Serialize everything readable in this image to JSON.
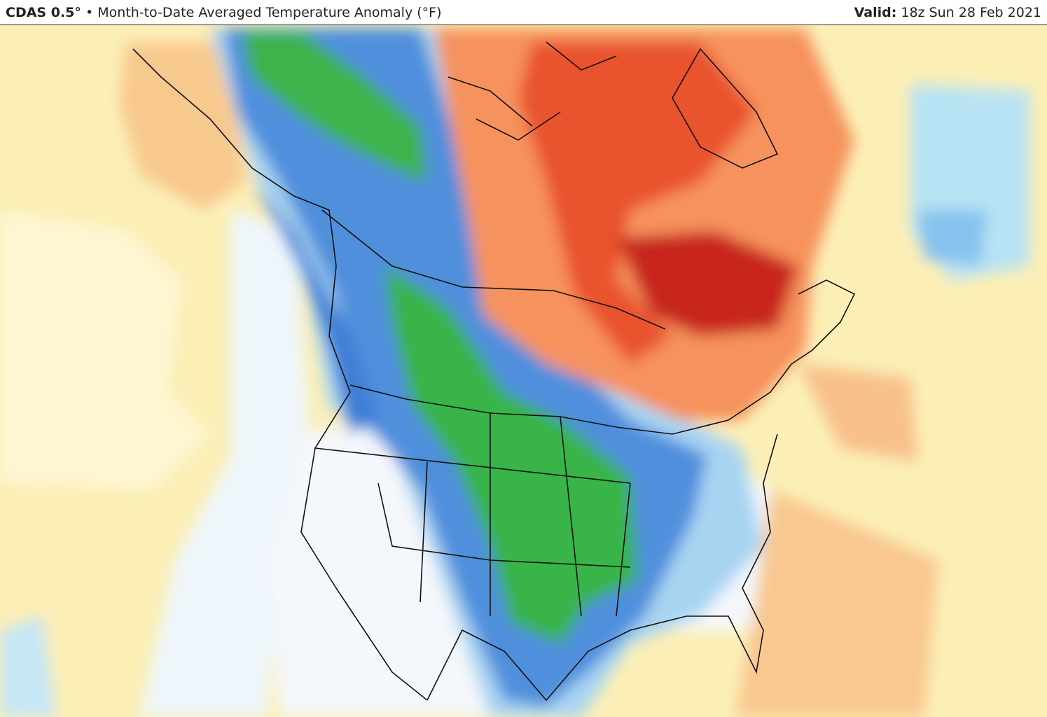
{
  "header": {
    "model": "CDAS 0.5°",
    "bullet": "•",
    "title": "Month-to-Date Averaged Temperature Anomaly (°F)",
    "valid_label": "Valid:",
    "valid_time": "18z Sun 28 Feb 2021"
  }
}
